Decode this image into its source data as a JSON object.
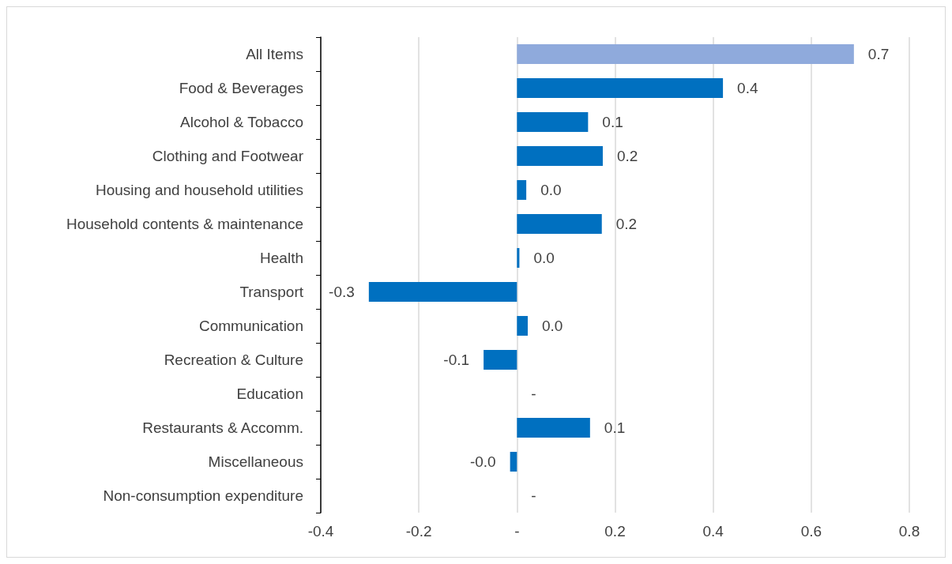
{
  "chart_data": {
    "type": "bar",
    "orientation": "horizontal",
    "categories": [
      "All Items",
      "Food & Beverages",
      "Alcohol & Tobacco",
      "Clothing and Footwear",
      "Housing and household utilities",
      "Household contents & maintenance",
      "Health",
      "Transport",
      "Communication",
      "Recreation & Culture",
      "Education",
      "Restaurants & Accomm.",
      "Miscellaneous",
      "Non-consumption expenditure"
    ],
    "values": [
      0.687,
      0.42,
      0.145,
      0.175,
      0.019,
      0.173,
      0.005,
      -0.302,
      0.022,
      -0.068,
      0,
      0.149,
      -0.014,
      0
    ],
    "colors": [
      "#8faadc",
      "#0070c0",
      "#0070c0",
      "#0070c0",
      "#0070c0",
      "#0070c0",
      "#0070c0",
      "#0070c0",
      "#0070c0",
      "#0070c0",
      "#0070c0",
      "#0070c0",
      "#0070c0",
      "#0070c0"
    ],
    "value_labels": [
      "0.7",
      "0.4",
      "0.1",
      "0.2",
      "0.0",
      "0.2",
      "0.0",
      "-0.3",
      "0.0",
      "-0.1",
      "-",
      "0.1",
      "-0.0",
      "-"
    ],
    "xlim": [
      -0.4,
      0.8
    ],
    "xticks": [
      -0.4,
      -0.2,
      {
        "value": 0,
        "label": "-"
      },
      0.2,
      0.4,
      0.6,
      0.8
    ],
    "grid": "x"
  }
}
